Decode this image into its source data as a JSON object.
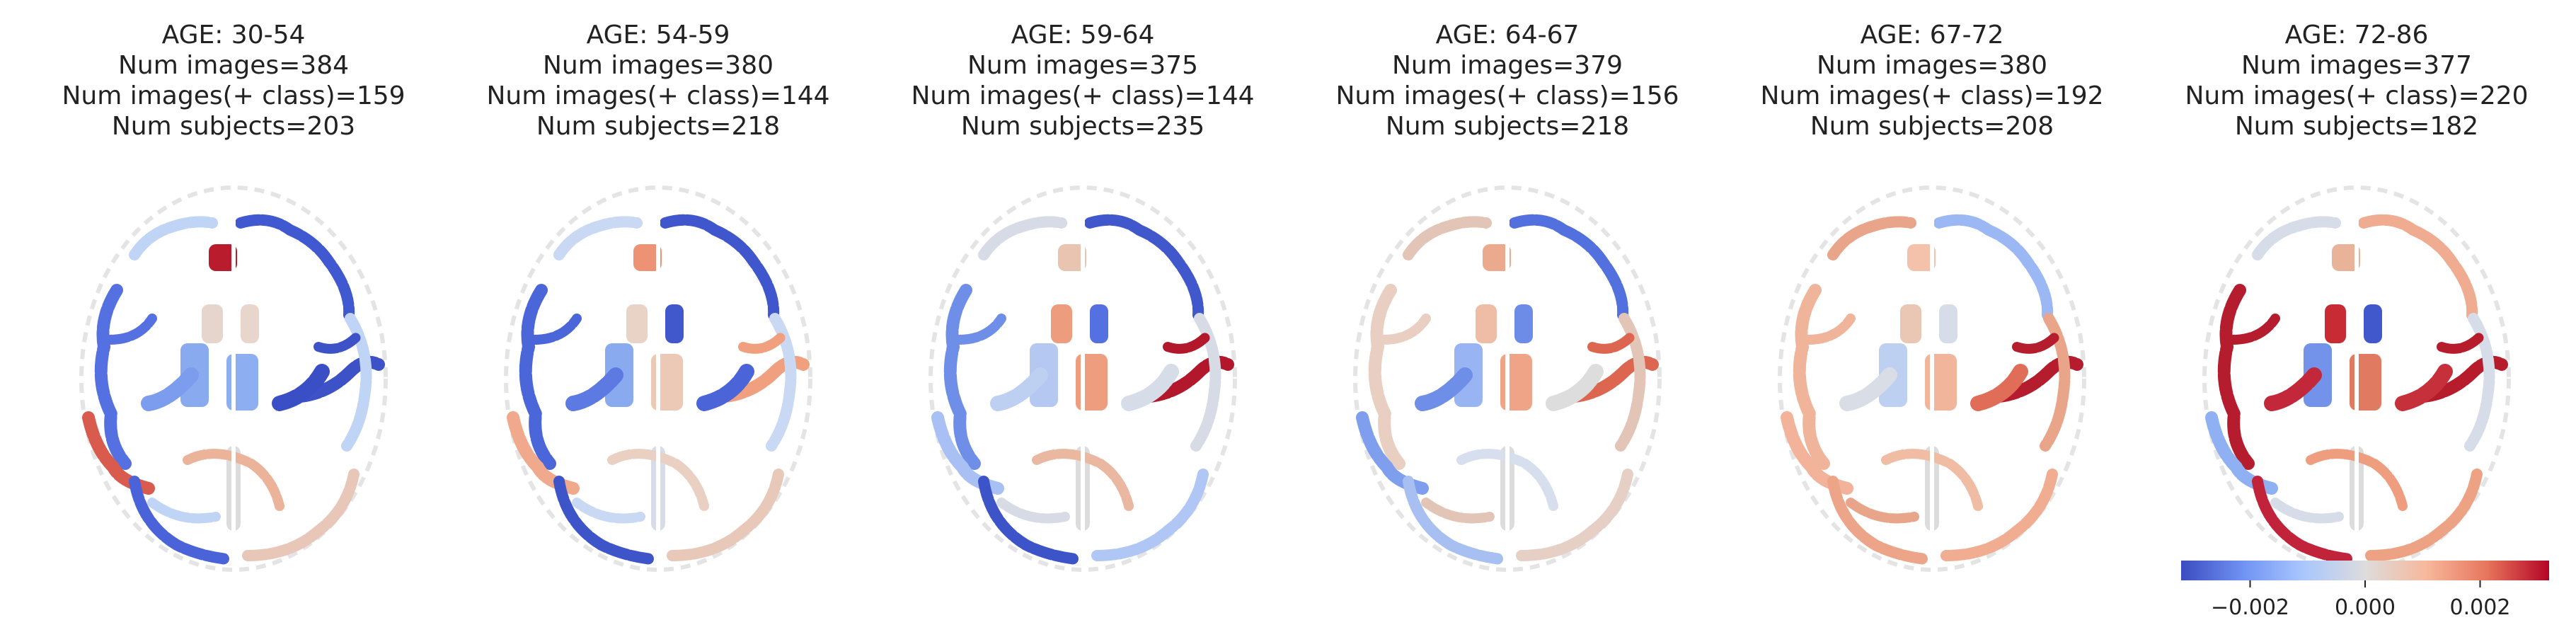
{
  "panels": [
    {
      "title": "AGE: 30-54",
      "num_images": "Num images=384",
      "num_pos": "Num images(+ class)=159",
      "num_subjects": "Num subjects=203",
      "regions": {
        "lf": "#5570e0",
        "lf2": "#c0d4f5",
        "rf": "#4058d0",
        "ri": "#b91c2c",
        "lt": "#d85b4e",
        "rt": "#3e52c8",
        "lo": "#4a63d8",
        "ro": "#e8c7b8",
        "cl": "#e6d5cc",
        "cr": "#e8d6cd",
        "thl": "#8aaaf0",
        "thr": "#8eaef2",
        "ptl": "#7c9cee",
        "ptr": "#3a4fc6",
        "mid": "#dcdcdc",
        "oc": "#eab39a"
      }
    },
    {
      "title": "AGE: 54-59",
      "num_images": "Num images=380",
      "num_pos": "Num images(+ class)=144",
      "num_subjects": "Num subjects=218",
      "regions": {
        "lf": "#4b66d8",
        "lf2": "#c9d8f3",
        "rf": "#3f56cc",
        "ri": "#ee9276",
        "lt": "#f0a98c",
        "rt": "#f0a07f",
        "lo": "#3e55ca",
        "ro": "#e8c8b8",
        "cl": "#e9d2c6",
        "cr": "#4058cc",
        "thl": "#8aaaf0",
        "thr": "#ecc8b6",
        "ptl": "#5d7ae2",
        "ptr": "#4b65d8",
        "mid": "#d6dde8",
        "oc": "#ead0c2"
      }
    },
    {
      "title": "AGE: 59-64",
      "num_images": "Num images=375",
      "num_pos": "Num images(+ class)=144",
      "num_subjects": "Num subjects=235",
      "regions": {
        "lf": "#6e8ee8",
        "lf2": "#d6dbe6",
        "rf": "#4058cc",
        "ri": "#e9c4b1",
        "lt": "#a8c0f4",
        "rt": "#b2172b",
        "lo": "#3d53c8",
        "ro": "#b0c6f4",
        "cl": "#ed9c7e",
        "cr": "#5570e0",
        "thl": "#b4c8f2",
        "thr": "#ef9d7f",
        "ptl": "#bdd0f2",
        "ptr": "#d6dde8",
        "mid": "#dcdcdc",
        "oc": "#eab7a0"
      }
    },
    {
      "title": "AGE: 64-67",
      "num_images": "Num images=379",
      "num_pos": "Num images(+ class)=156",
      "num_subjects": "Num subjects=218",
      "regions": {
        "lf": "#e9cfc2",
        "lf2": "#e2c5b6",
        "rf": "#5270de",
        "ri": "#eba98e",
        "lt": "#7f9eee",
        "rt": "#dd6650",
        "lo": "#a8bff2",
        "ro": "#e6d0c5",
        "cl": "#efbca6",
        "cr": "#6d8ce8",
        "thl": "#98b4f2",
        "thr": "#f0a487",
        "ptl": "#6f8ee8",
        "ptr": "#dddddd",
        "mid": "#dcdcdc",
        "oc": "#d7dfee"
      }
    },
    {
      "title": "AGE: 67-72",
      "num_images": "Num images=380",
      "num_pos": "Num images(+ class)=192",
      "num_subjects": "Num subjects=208",
      "regions": {
        "lf": "#f0b49a",
        "lf2": "#e9a58a",
        "rf": "#9cb8f4",
        "ri": "#f4c2ab",
        "lt": "#f2b39a",
        "rt": "#b51d2e",
        "lo": "#eca589",
        "ro": "#f0ad92",
        "cl": "#eac6b4",
        "cr": "#d6dde8",
        "thl": "#bdd0f2",
        "thr": "#f1b59c",
        "ptl": "#d8dde6",
        "ptr": "#df6d58",
        "mid": "#dcdcdc",
        "oc": "#f0bca4"
      }
    },
    {
      "title": "AGE: 72-86",
      "num_images": "Num images=377",
      "num_pos": "Num images(+ class)=220",
      "num_subjects": "Num subjects=182",
      "regions": {
        "lf": "#b51d2e",
        "lf2": "#d6dde8",
        "rf": "#efac90",
        "ri": "#e9b39a",
        "lt": "#8fb0f2",
        "rt": "#b71c2c",
        "lo": "#c0233a",
        "ro": "#eda284",
        "cl": "#c92b35",
        "cr": "#4058cc",
        "thl": "#7393ea",
        "thr": "#e07a60",
        "ptl": "#c3283a",
        "ptr": "#c6303a",
        "mid": "#dcdcdc",
        "oc": "#ef9d7f"
      }
    }
  ],
  "colorbar": {
    "tick_labels": [
      "−0.002",
      "0.000",
      "0.002"
    ],
    "tick_values": [
      -0.002,
      0.0,
      0.002
    ],
    "min": -0.0032,
    "max": 0.0032,
    "colors": [
      "#3b4cc0",
      "#6f92f3",
      "#aac7fd",
      "#dddcdc",
      "#f7b89c",
      "#e7745b",
      "#b40426"
    ]
  }
}
